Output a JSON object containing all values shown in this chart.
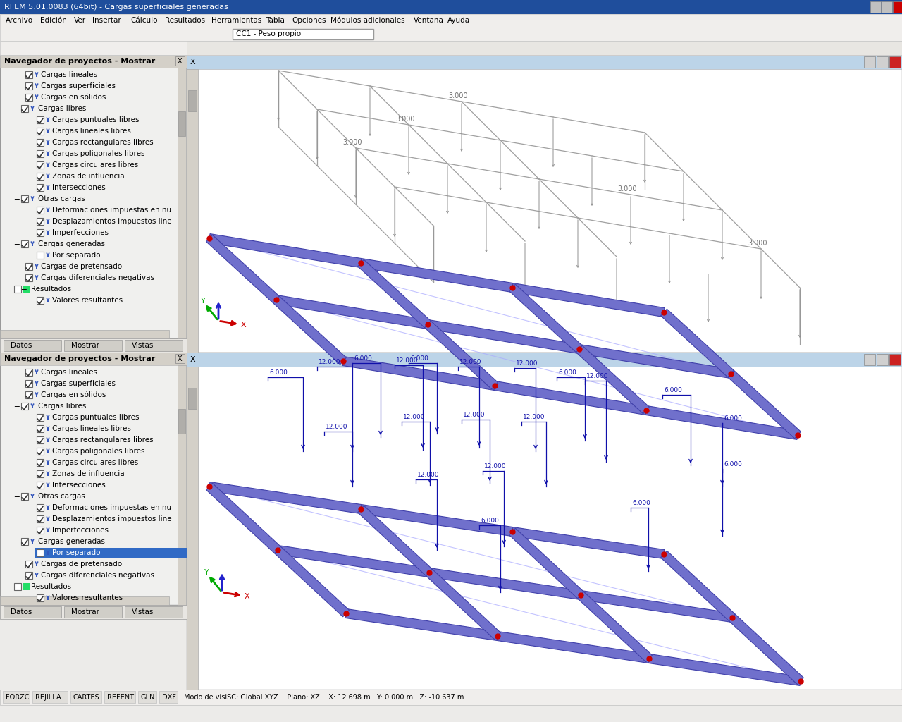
{
  "title": "RFEM 5.01.0083 (64bit) - Cargas superficiales generadas",
  "menubar_items": [
    "Archivo",
    "Edición",
    "Ver",
    "Insertar",
    "Cálculo",
    "Resultados",
    "Herramientas",
    "Tabla",
    "Opciones",
    "Módulos adicionales",
    "Ventana",
    "Ayuda"
  ],
  "load_combo": "CC1 - Peso propio",
  "panel_title": "Navegador de proyectos - Mostrar",
  "tree_items_top": [
    "Cargas lineales",
    "Cargas superficiales",
    "Cargas en sólidos"
  ],
  "tree_cargas_libres": [
    "Cargas puntuales libres",
    "Cargas lineales libres",
    "Cargas rectangulares libres",
    "Cargas poligonales libres",
    "Cargas circulares libres",
    "Zonas de influencia",
    "Intersecciones"
  ],
  "tree_otras_cargas": [
    "Deformaciones impuestas en nu",
    "Desplazamientos impuestos line",
    "Imperfecciones"
  ],
  "tree_cargas_generadas": [
    "Por separado"
  ],
  "tree_bottom": [
    "Cargas de pretensado",
    "Cargas diferenciales negativas"
  ],
  "tree_resultados": [
    "Valores resultantes"
  ],
  "tabs": [
    "Datos",
    "Mostrar",
    "Vistas"
  ],
  "status_bar_items": [
    "FORZC",
    "REJILLA",
    "CARTES",
    "REFENT",
    "GLN",
    "DXF"
  ],
  "status_bar_info": "Modo de visiSC: Global XYZ    Plano: XZ    X: 12.698 m   Y: 0.000 m   Z: -10.637 m",
  "bg_color": "#ecebe9",
  "panel_bg": "#f0f0f0",
  "viewport_bg": "#ffffff",
  "blue_fill": "#7070cc",
  "blue_edge": "#4040aa",
  "blue_light": "#9090dd",
  "gray_arrow": "#909090",
  "blue_arrow": "#1010aa",
  "red_dot": "#cc0000",
  "axis_y_color": "#00aa00",
  "axis_x_color": "#cc0000",
  "axis_z_color": "#2222cc",
  "selected_bg": "#316ac5",
  "titlebar_bg": "#d4d0c8",
  "panel_header_bg": "#d4d0c8",
  "viewport_header_bg": "#bcd4e8",
  "label_3000_color": "#707070",
  "label_6000_color": "#0000aa",
  "scrollbar_bg": "#d4d0c8",
  "scrollbar_thumb": "#b0aeaa"
}
